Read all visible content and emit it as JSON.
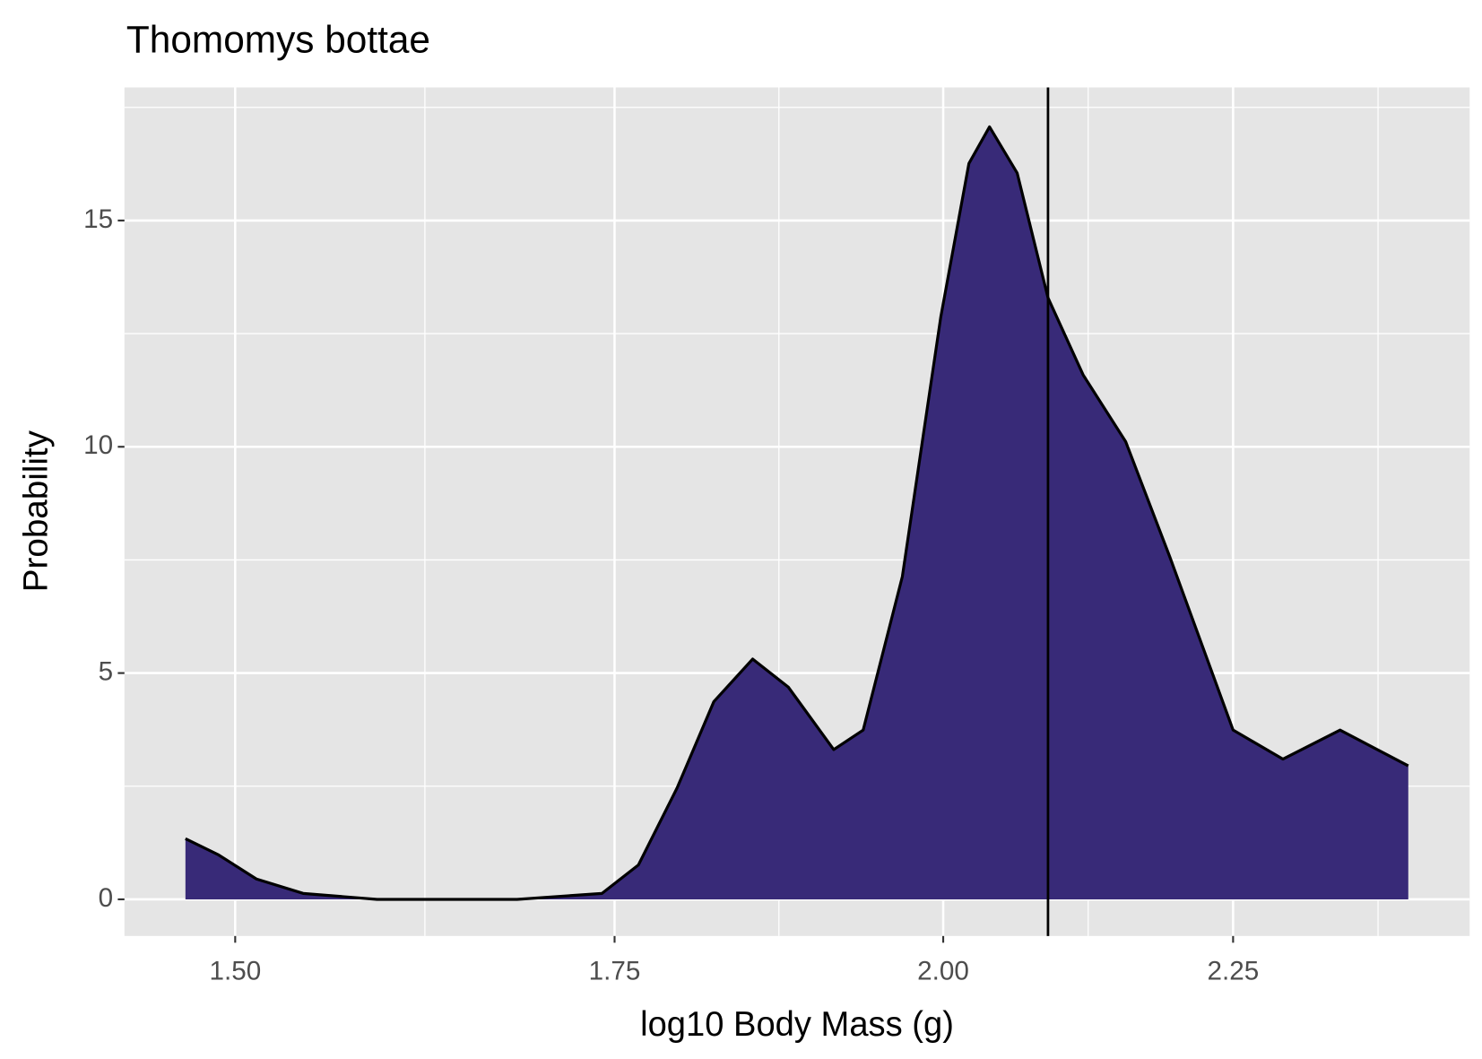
{
  "chart_data": {
    "type": "area",
    "title": "Thomomys bottae",
    "x_label": "log10 Body Mass (g)",
    "y_label": "Probability",
    "x_scale": "log",
    "x": [
      1.47,
      1.49,
      1.513,
      1.542,
      1.589,
      1.682,
      1.741,
      1.767,
      1.795,
      1.822,
      1.851,
      1.878,
      1.913,
      1.936,
      1.967,
      1.998,
      2.021,
      2.038,
      2.061,
      2.087,
      2.117,
      2.154,
      2.193,
      2.25,
      2.296,
      2.35,
      2.416
    ],
    "values": [
      1.34,
      0.98,
      0.45,
      0.13,
      0,
      0,
      0.13,
      0.76,
      2.46,
      4.37,
      5.31,
      4.69,
      3.31,
      3.74,
      7.13,
      12.87,
      16.26,
      17.07,
      16.05,
      13.29,
      11.59,
      10.11,
      7.56,
      3.74,
      3.1,
      3.74,
      2.95
    ],
    "color": "#382a78",
    "vline": 2.087,
    "xlim": [
      1.434,
      2.477
    ],
    "xticks": [
      {
        "value": 1.5,
        "label": "1.50"
      },
      {
        "value": 1.75,
        "label": "1.75"
      },
      {
        "value": 2.0,
        "label": "2.00"
      },
      {
        "value": 2.25,
        "label": "2.25"
      }
    ],
    "ylim": [
      -0.81,
      17.94
    ],
    "yticks": [
      0,
      5,
      10,
      15
    ],
    "grid": true
  }
}
